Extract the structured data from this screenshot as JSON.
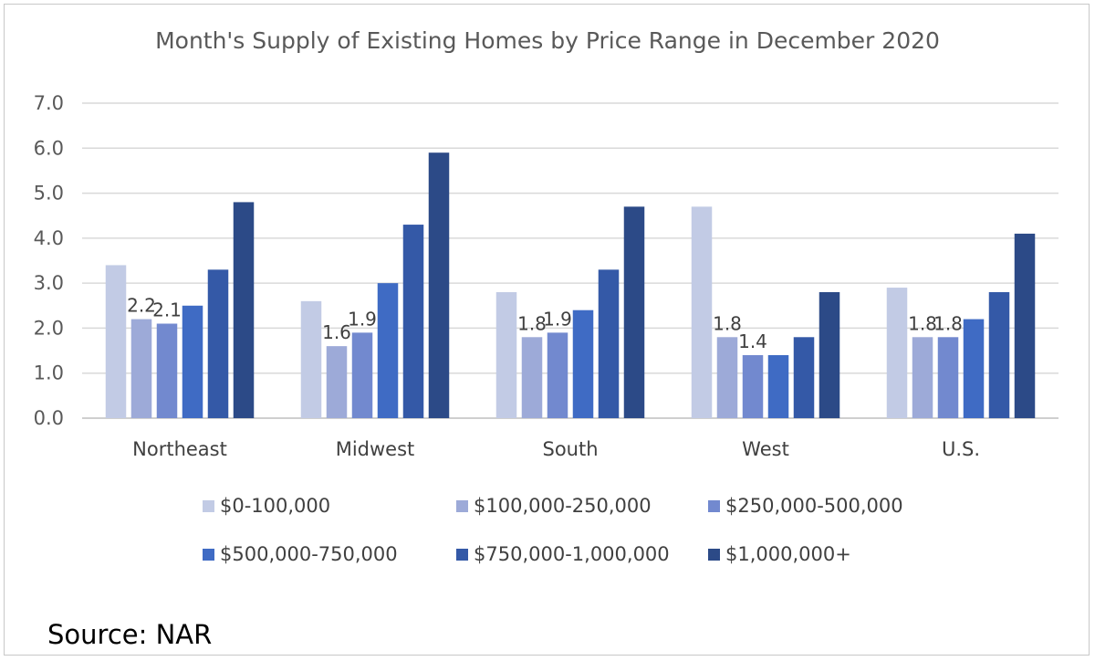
{
  "chart_data": {
    "type": "bar",
    "title": "Month's Supply of Existing Homes  by Price Range in December 2020",
    "xlabel": "",
    "ylabel": "",
    "ylim": [
      0,
      7
    ],
    "yticks": [
      "0.0",
      "1.0",
      "2.0",
      "3.0",
      "4.0",
      "5.0",
      "6.0",
      "7.0"
    ],
    "grid": true,
    "legend_position": "bottom",
    "categories": [
      "Northeast",
      "Midwest",
      "South",
      "West",
      "U.S."
    ],
    "series": [
      {
        "name": "$0-100,000",
        "color": "#c2cbe5",
        "values": [
          3.4,
          2.6,
          2.8,
          4.7,
          2.9
        ]
      },
      {
        "name": "$100,000-250,000",
        "color": "#9daad8",
        "values": [
          2.2,
          1.6,
          1.8,
          1.8,
          1.8
        ]
      },
      {
        "name": "$250,000-500,000",
        "color": "#7289cf",
        "values": [
          2.1,
          1.9,
          1.9,
          1.4,
          1.8
        ]
      },
      {
        "name": "$500,000-750,000",
        "color": "#3f6bc4",
        "values": [
          2.5,
          3.0,
          2.4,
          1.4,
          2.2
        ]
      },
      {
        "name": "$750,000-1,000,000",
        "color": "#3459a7",
        "values": [
          3.3,
          4.3,
          3.3,
          1.8,
          2.8
        ]
      },
      {
        "name": "$1,000,000+",
        "color": "#2c4a87",
        "values": [
          4.8,
          5.9,
          4.7,
          2.8,
          4.1
        ]
      }
    ],
    "data_labels": [
      {
        "category": 0,
        "series": 1,
        "text": "2.2"
      },
      {
        "category": 0,
        "series": 2,
        "text": "2.1"
      },
      {
        "category": 1,
        "series": 1,
        "text": "1.6"
      },
      {
        "category": 1,
        "series": 2,
        "text": "1.9"
      },
      {
        "category": 2,
        "series": 1,
        "text": "1.8"
      },
      {
        "category": 2,
        "series": 2,
        "text": "1.9"
      },
      {
        "category": 3,
        "series": 1,
        "text": "1.8"
      },
      {
        "category": 3,
        "series": 2,
        "text": "1.4"
      },
      {
        "category": 4,
        "series": 1,
        "text": "1.8"
      },
      {
        "category": 4,
        "series": 2,
        "text": "1.8"
      }
    ]
  },
  "source": "Source: NAR"
}
